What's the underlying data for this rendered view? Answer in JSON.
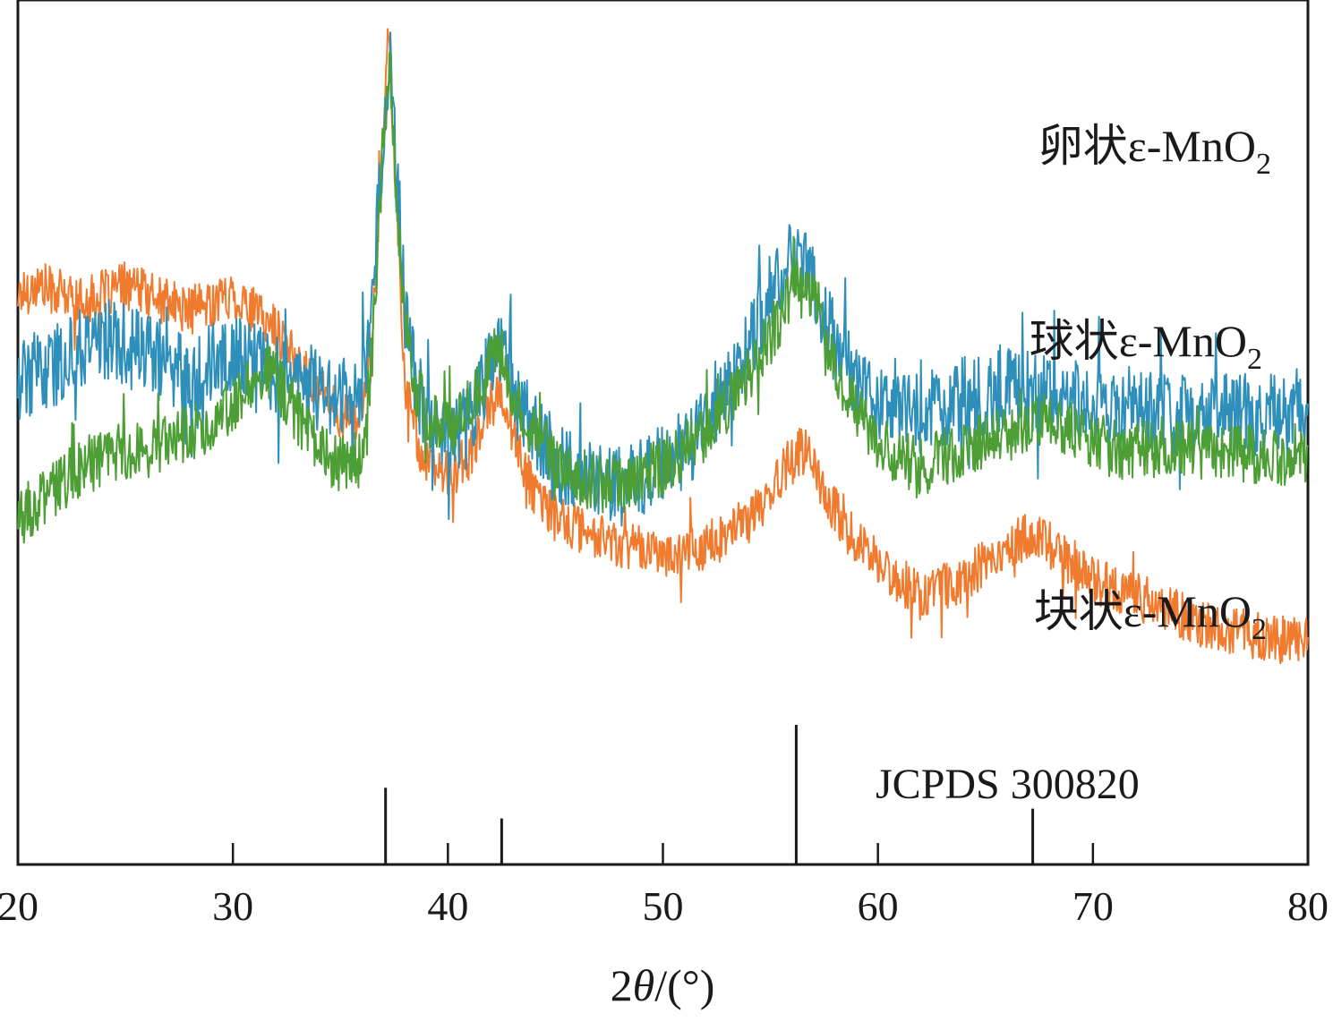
{
  "chart_data": {
    "type": "line",
    "xlabel": "2θ/(°)",
    "xlabel_parts": {
      "prefix": "2",
      "symbol": "θ",
      "suffix": "/(°)"
    },
    "ylabel": "",
    "xlim": [
      20,
      80
    ],
    "xticks": [
      20,
      30,
      40,
      50,
      60,
      70,
      80
    ],
    "grid": false,
    "y_ticks_shown": false,
    "series": [
      {
        "name": "卵状ε-MnO2",
        "label_main": "卵状ε-MnO",
        "label_sub": "2",
        "color": "#f07a2e",
        "x": [
          20,
          21,
          22,
          23,
          24,
          25,
          26,
          27,
          28,
          29,
          30,
          31,
          32,
          33,
          34,
          35,
          36,
          36.5,
          37,
          37.2,
          37.5,
          38,
          38.5,
          39,
          40,
          41,
          42,
          42.5,
          43,
          44,
          45,
          46,
          47,
          48,
          49,
          50,
          51,
          52,
          53,
          54,
          55,
          56,
          56.5,
          57,
          58,
          59,
          60,
          61,
          62,
          63,
          64,
          65,
          66,
          67,
          68,
          69,
          70,
          71,
          72,
          73,
          74,
          75,
          76,
          77,
          78,
          79,
          80
        ],
        "y": [
          0.66,
          0.67,
          0.66,
          0.65,
          0.66,
          0.67,
          0.66,
          0.65,
          0.64,
          0.65,
          0.66,
          0.64,
          0.62,
          0.58,
          0.55,
          0.52,
          0.52,
          0.62,
          0.86,
          0.98,
          0.82,
          0.56,
          0.5,
          0.46,
          0.45,
          0.47,
          0.53,
          0.55,
          0.5,
          0.43,
          0.4,
          0.39,
          0.38,
          0.37,
          0.37,
          0.36,
          0.36,
          0.37,
          0.38,
          0.4,
          0.43,
          0.47,
          0.48,
          0.46,
          0.41,
          0.37,
          0.35,
          0.33,
          0.31,
          0.32,
          0.33,
          0.35,
          0.37,
          0.38,
          0.37,
          0.35,
          0.33,
          0.32,
          0.31,
          0.3,
          0.29,
          0.28,
          0.27,
          0.27,
          0.26,
          0.26,
          0.26
        ]
      },
      {
        "name": "球状ε-MnO2",
        "label_main": "球状ε-MnO",
        "label_sub": "2",
        "color": "#2e90ba",
        "x": [
          20,
          21,
          22,
          23,
          24,
          25,
          26,
          27,
          28,
          29,
          30,
          31,
          32,
          33,
          34,
          35,
          36,
          36.5,
          37,
          37.3,
          37.6,
          38,
          38.5,
          39,
          40,
          41,
          42,
          42.5,
          43,
          44,
          45,
          46,
          47,
          48,
          49,
          50,
          51,
          52,
          53,
          54,
          55,
          56,
          56.5,
          57,
          58,
          59,
          60,
          61,
          62,
          63,
          64,
          65,
          66,
          67,
          68,
          69,
          70,
          71,
          72,
          73,
          74,
          75,
          76,
          77,
          78,
          79,
          80
        ],
        "y": [
          0.56,
          0.57,
          0.58,
          0.6,
          0.61,
          0.6,
          0.59,
          0.58,
          0.57,
          0.58,
          0.59,
          0.58,
          0.57,
          0.56,
          0.55,
          0.54,
          0.55,
          0.66,
          0.84,
          0.93,
          0.8,
          0.64,
          0.56,
          0.52,
          0.5,
          0.52,
          0.58,
          0.6,
          0.55,
          0.5,
          0.47,
          0.45,
          0.44,
          0.44,
          0.45,
          0.46,
          0.48,
          0.51,
          0.55,
          0.6,
          0.66,
          0.7,
          0.71,
          0.67,
          0.6,
          0.56,
          0.53,
          0.52,
          0.52,
          0.53,
          0.54,
          0.54,
          0.55,
          0.55,
          0.54,
          0.54,
          0.53,
          0.53,
          0.53,
          0.52,
          0.52,
          0.52,
          0.52,
          0.52,
          0.52,
          0.52,
          0.52
        ]
      },
      {
        "name": "块状ε-MnO2",
        "label_main": "块状ε-MnO",
        "label_sub": "2",
        "color": "#4d9e35",
        "x": [
          20,
          21,
          22,
          23,
          24,
          25,
          26,
          27,
          28,
          29,
          30,
          31,
          31.5,
          32,
          33,
          34,
          35,
          36,
          36.5,
          37,
          37.3,
          37.6,
          38,
          38.5,
          39,
          40,
          41,
          42,
          42.5,
          43,
          44,
          45,
          46,
          47,
          48,
          49,
          50,
          51,
          52,
          53,
          54,
          55,
          56,
          56.5,
          57,
          58,
          59,
          60,
          61,
          62,
          63,
          64,
          65,
          66,
          67,
          68,
          69,
          70,
          71,
          72,
          73,
          74,
          75,
          76,
          77,
          78,
          79,
          80
        ],
        "y": [
          0.4,
          0.42,
          0.44,
          0.46,
          0.47,
          0.48,
          0.48,
          0.49,
          0.5,
          0.51,
          0.53,
          0.56,
          0.58,
          0.56,
          0.52,
          0.48,
          0.46,
          0.47,
          0.6,
          0.84,
          0.92,
          0.78,
          0.62,
          0.55,
          0.52,
          0.5,
          0.53,
          0.58,
          0.6,
          0.55,
          0.5,
          0.47,
          0.45,
          0.44,
          0.44,
          0.45,
          0.46,
          0.48,
          0.5,
          0.53,
          0.57,
          0.61,
          0.66,
          0.68,
          0.66,
          0.58,
          0.52,
          0.49,
          0.47,
          0.46,
          0.47,
          0.48,
          0.49,
          0.5,
          0.51,
          0.51,
          0.5,
          0.49,
          0.48,
          0.48,
          0.48,
          0.48,
          0.48,
          0.48,
          0.48,
          0.47,
          0.47,
          0.47
        ]
      }
    ],
    "reference": {
      "name": "JCPDS 300820",
      "color": "#1a1a1a",
      "peaks": [
        {
          "x": 37.1,
          "intensity": 0.55
        },
        {
          "x": 42.5,
          "intensity": 0.33
        },
        {
          "x": 56.2,
          "intensity": 1.0
        },
        {
          "x": 67.2,
          "intensity": 0.4
        }
      ]
    }
  }
}
